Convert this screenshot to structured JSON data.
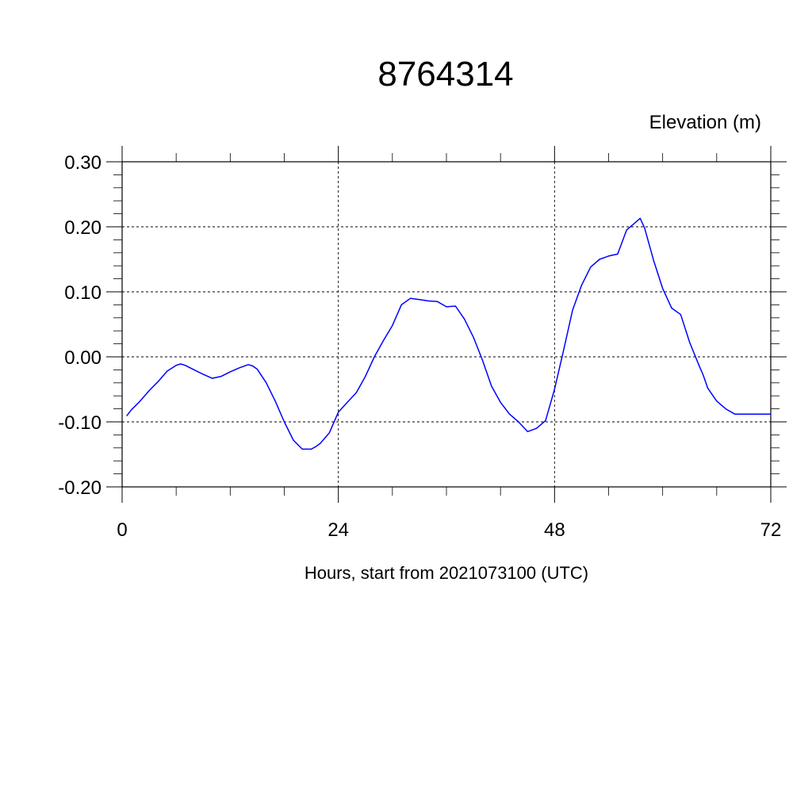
{
  "chart_data": {
    "type": "line",
    "title": "8764314",
    "ylabel": "Elevation (m)",
    "xlabel": "Hours, start from 2021073100 (UTC)",
    "xlim": [
      0,
      72
    ],
    "ylim": [
      -0.2,
      0.3
    ],
    "x_ticks": [
      0,
      24,
      48,
      72
    ],
    "x_tick_labels": [
      "0",
      "24",
      "48",
      "72"
    ],
    "y_ticks": [
      -0.2,
      -0.1,
      0.0,
      0.1,
      0.2,
      0.3
    ],
    "y_tick_labels": [
      "-0.20",
      "-0.10",
      "0.00",
      "0.10",
      "0.20",
      "0.30"
    ],
    "grid": true,
    "line_color": "#0000ff",
    "series": [
      {
        "x": [
          0.5,
          1,
          2,
          3,
          4,
          5,
          6,
          6.5,
          7,
          8,
          9,
          10,
          11,
          12,
          13,
          14,
          14.5,
          15,
          16,
          17,
          18,
          19,
          20,
          21,
          21.5,
          22,
          23,
          24,
          25,
          26,
          27,
          28,
          29,
          30,
          31,
          32,
          33,
          34,
          35,
          36,
          37,
          38,
          39,
          40,
          41,
          42,
          43,
          44,
          45,
          46,
          47,
          48,
          49,
          50,
          51,
          52,
          53,
          54,
          55,
          56,
          57,
          57.5,
          58,
          59,
          60,
          61,
          62,
          63,
          64,
          64.5,
          65,
          66,
          67,
          68,
          69,
          70,
          71,
          71.5,
          72
        ],
        "y": [
          -0.091,
          -0.082,
          -0.068,
          -0.052,
          -0.038,
          -0.022,
          -0.013,
          -0.011,
          -0.013,
          -0.02,
          -0.027,
          -0.033,
          -0.03,
          -0.023,
          -0.017,
          -0.012,
          -0.014,
          -0.019,
          -0.04,
          -0.068,
          -0.1,
          -0.128,
          -0.142,
          -0.142,
          -0.138,
          -0.133,
          -0.117,
          -0.085,
          -0.07,
          -0.055,
          -0.03,
          0.0,
          0.025,
          0.048,
          0.08,
          0.09,
          0.088,
          0.086,
          0.085,
          0.077,
          0.078,
          0.058,
          0.03,
          -0.005,
          -0.045,
          -0.07,
          -0.088,
          -0.1,
          -0.115,
          -0.11,
          -0.098,
          -0.05,
          0.01,
          0.072,
          0.11,
          0.138,
          0.15,
          0.155,
          0.158,
          0.195,
          0.207,
          0.213,
          0.198,
          0.148,
          0.105,
          0.075,
          0.065,
          0.022,
          -0.012,
          -0.028,
          -0.048,
          -0.068,
          -0.08,
          -0.088,
          -0.088,
          -0.088,
          -0.088,
          -0.088,
          -0.088
        ]
      }
    ]
  }
}
